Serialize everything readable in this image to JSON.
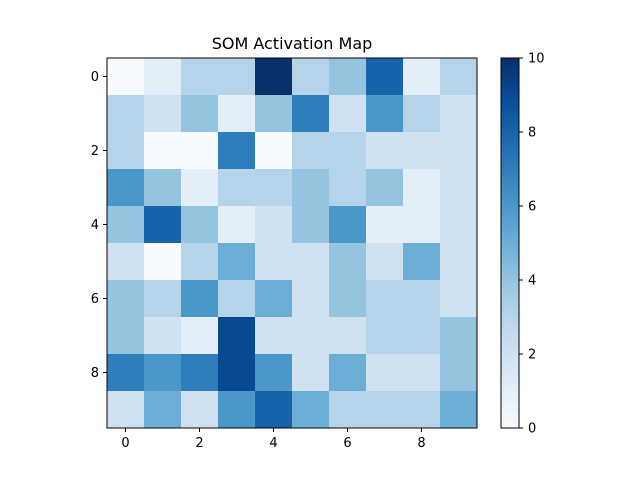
{
  "chart_data": {
    "type": "heatmap",
    "title": "SOM Activation Map",
    "xlabel": "",
    "ylabel": "",
    "rows": 10,
    "cols": 10,
    "x_ticks": [
      "0",
      "2",
      "4",
      "6",
      "8"
    ],
    "y_ticks": [
      "0",
      "2",
      "4",
      "6",
      "8"
    ],
    "colormap": "Blues",
    "vmin": 0,
    "vmax": 10,
    "colorbar_ticks": [
      "0",
      "2",
      "4",
      "6",
      "8",
      "10"
    ],
    "values": [
      [
        0,
        1,
        3,
        3,
        10,
        3,
        4,
        8,
        1,
        3
      ],
      [
        3,
        2,
        4,
        1,
        4,
        7,
        2,
        6,
        3,
        2
      ],
      [
        3,
        0,
        0,
        7,
        0,
        3,
        3,
        2,
        2,
        2
      ],
      [
        6,
        4,
        1,
        3,
        3,
        4,
        3,
        4,
        1,
        2
      ],
      [
        4,
        8,
        4,
        1,
        2,
        4,
        6,
        1,
        1,
        2
      ],
      [
        2,
        0,
        3,
        5,
        2,
        2,
        4,
        2,
        5,
        2
      ],
      [
        4,
        3,
        6,
        3,
        5,
        2,
        4,
        3,
        3,
        2
      ],
      [
        4,
        2,
        1,
        9,
        2,
        2,
        2,
        3,
        3,
        4
      ],
      [
        7,
        6,
        7,
        9,
        6,
        2,
        5,
        2,
        2,
        4
      ],
      [
        2,
        5,
        2,
        6,
        8,
        5,
        3,
        3,
        3,
        5
      ]
    ]
  }
}
